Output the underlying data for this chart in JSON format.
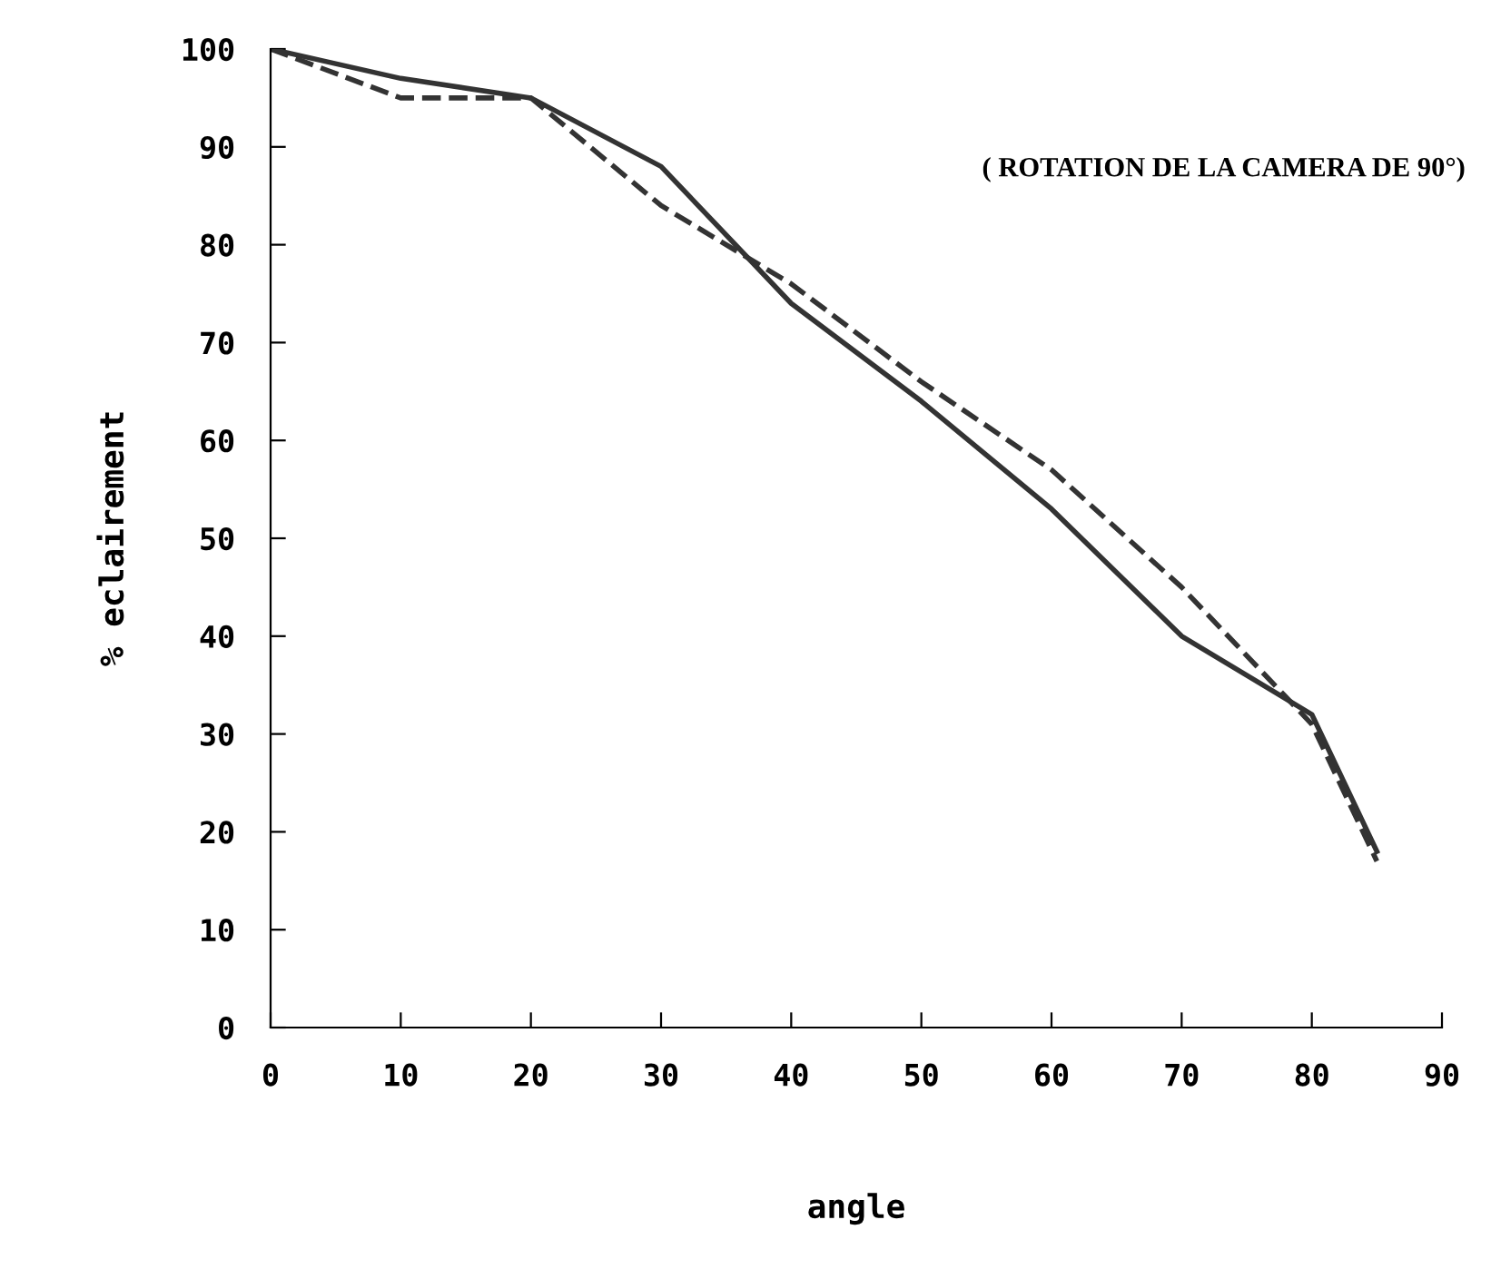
{
  "chart_data": {
    "type": "line",
    "xlabel": "angle",
    "ylabel": "% eclairement",
    "annotations": [
      "( ROTATION DE LA CAMERA DE 90°)"
    ],
    "x": [
      0,
      10,
      20,
      30,
      40,
      50,
      60,
      70,
      80,
      85
    ],
    "series": [
      {
        "color": "#333333",
        "line_style": "solid",
        "values": [
          100,
          97,
          95,
          88,
          74,
          64,
          53,
          40,
          32,
          18
        ]
      },
      {
        "color": "#333333",
        "line_style": "dashed",
        "values": [
          100,
          95,
          95,
          84,
          76,
          66,
          57,
          45,
          31,
          17
        ]
      }
    ],
    "xlim": [
      0,
      90
    ],
    "xticks": [
      0,
      10,
      20,
      30,
      40,
      50,
      60,
      70,
      80,
      90
    ],
    "ylim": [
      0,
      100
    ],
    "yticks": [
      0,
      10,
      20,
      30,
      40,
      50,
      60,
      70,
      80,
      90,
      100
    ],
    "grid": false,
    "legend": false,
    "marker": "none"
  }
}
